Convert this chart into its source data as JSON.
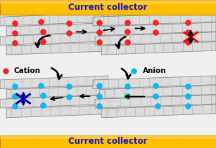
{
  "fig_width": 3.07,
  "fig_height": 2.11,
  "dpi": 100,
  "bg_color": "#f0f0f0",
  "cc_color": "#FFC000",
  "cc_highlight": "#FFD966",
  "cc_shadow": "#B8860B",
  "cc_text_color": "#1515cc",
  "cc_text": "Current collector",
  "cc_font_size": 8.5,
  "cation_color": "#ff2020",
  "anion_color": "#00bfff",
  "sheet_fill": "#dcdcdc",
  "sheet_edge": "#888888",
  "sheet_stripe": "#aaaaaa",
  "arrow_color": "#111111",
  "label_cation": "Cation",
  "label_anion": "Anion",
  "label_fontsize": 7.5,
  "dot_size": 5.5
}
